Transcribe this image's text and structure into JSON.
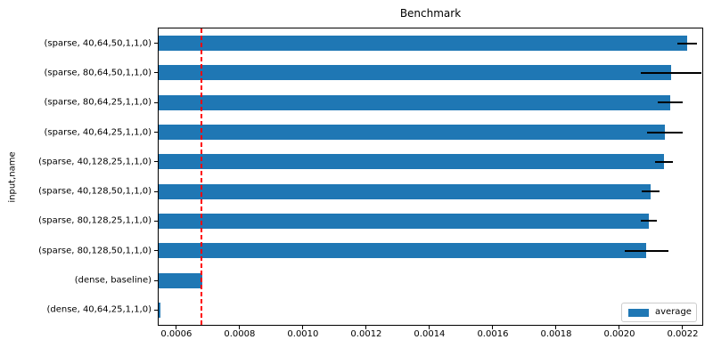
{
  "chart_data": {
    "type": "bar",
    "orientation": "horizontal",
    "title": "Benchmark",
    "xlabel": "",
    "ylabel": "input,name",
    "categories": [
      "(sparse, 40,64,50,1,1,0)",
      "(sparse, 80,64,50,1,1,0)",
      "(sparse, 80,64,25,1,1,0)",
      "(sparse, 40,64,25,1,1,0)",
      "(sparse, 40,128,25,1,1,0)",
      "(sparse, 40,128,50,1,1,0)",
      "(sparse, 80,128,25,1,1,0)",
      "(sparse, 80,128,50,1,1,0)",
      "(dense, baseline)",
      "(dense, 40,64,25,1,1,0)"
    ],
    "series": [
      {
        "name": "average",
        "values": [
          0.002213,
          0.002164,
          0.00216,
          0.002143,
          0.00214,
          0.002098,
          0.002093,
          0.002085,
          0.000681,
          0.00055
        ],
        "errors": [
          3.1e-05,
          9.6e-05,
          4e-05,
          5.6e-05,
          2.8e-05,
          2.8e-05,
          2.6e-05,
          6.9e-05,
          0,
          0
        ]
      }
    ],
    "xlim": [
      0.000544,
      0.002262
    ],
    "xticks": [
      0.0006,
      0.0008,
      0.001,
      0.0012,
      0.0014,
      0.0016,
      0.0018,
      0.002,
      0.0022
    ],
    "xtick_labels": [
      "0.0006",
      "0.0008",
      "0.0010",
      "0.0012",
      "0.0014",
      "0.0016",
      "0.0018",
      "0.0020",
      "0.0022"
    ],
    "reference_line": {
      "x": 0.00068,
      "color": "#ff0000",
      "style": "dashed"
    },
    "colors": {
      "bar": "#1f77b4",
      "error_bar": "#000000",
      "spine": "#000000"
    },
    "legend": {
      "position": "lower right",
      "entries": [
        "average"
      ]
    },
    "grid": false
  }
}
